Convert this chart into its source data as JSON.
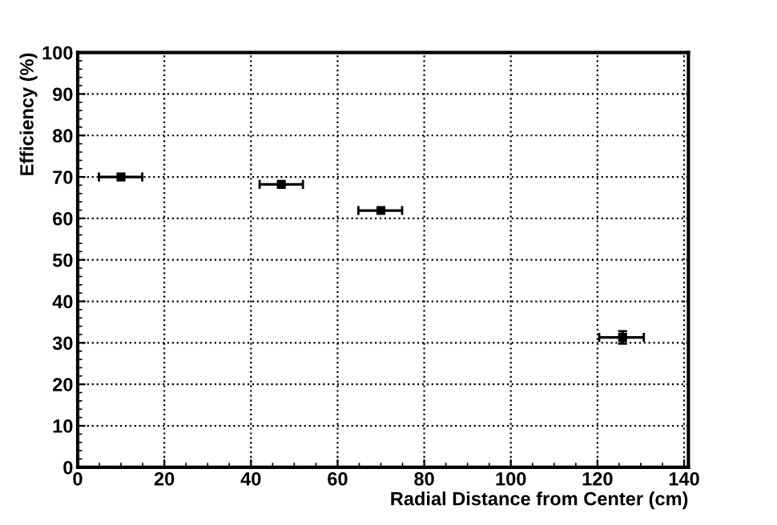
{
  "chart_data": {
    "type": "scatter",
    "xlabel": "Radial Distance from Center (cm)",
    "ylabel": "Efficiency (%)",
    "x": [
      10,
      47,
      70,
      125.8
    ],
    "values": [
      70,
      68.2,
      61.9,
      31.3
    ],
    "xerrors": [
      [
        4.9,
        14.9
      ],
      [
        42,
        52
      ],
      [
        64.8,
        74.9
      ],
      [
        120.4,
        130.7
      ]
    ],
    "errors": [
      null,
      null,
      null,
      [
        29.8,
        32.8
      ]
    ],
    "color": "#000000",
    "marker": "square",
    "xlim": [
      0,
      141
    ],
    "ylim": [
      0,
      100
    ],
    "xticks": [
      0,
      20,
      40,
      60,
      80,
      100,
      120,
      140
    ],
    "yticks": [
      0,
      10,
      20,
      30,
      40,
      50,
      60,
      70,
      80,
      90,
      100
    ],
    "grid": true
  }
}
